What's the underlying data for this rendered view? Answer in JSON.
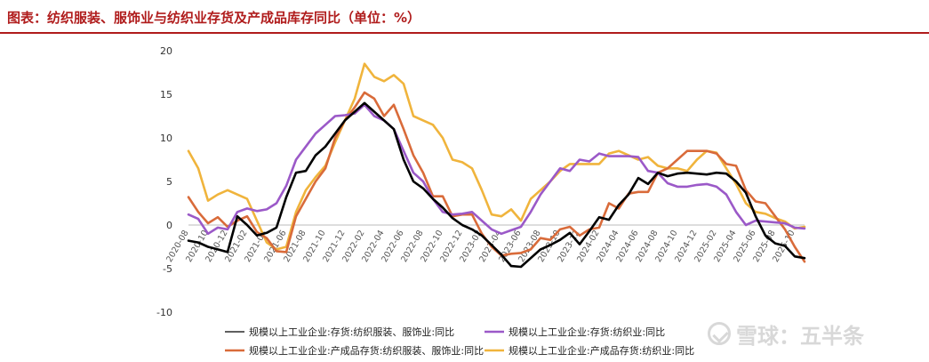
{
  "header": {
    "title": "图表：纺织服装、服饰业与纺织业存货及产成品库存同比（单位：%）"
  },
  "watermark": {
    "icon": "snowball-logo-icon",
    "text": "雪球：五半条"
  },
  "chart_data": {
    "type": "line",
    "title": "图表：纺织服装、服饰业与纺织业存货及产成品库存同比（单位：%）",
    "ylim": [
      -10,
      20
    ],
    "yticks": [
      -10,
      -5,
      0,
      5,
      10,
      15,
      20
    ],
    "grid": false,
    "legend_position": "bottom",
    "x": [
      "2020-08",
      "2020-09",
      "2020-10",
      "2020-11",
      "2020-12",
      "2021-01",
      "2021-02",
      "2021-03",
      "2021-04",
      "2021-05",
      "2021-06",
      "2021-07",
      "2021-08",
      "2021-09",
      "2021-10",
      "2021-11",
      "2021-12",
      "2022-01",
      "2022-02",
      "2022-03",
      "2022-04",
      "2022-05",
      "2022-06",
      "2022-07",
      "2022-08",
      "2022-09",
      "2022-10",
      "2022-11",
      "2022-12",
      "2023-01",
      "2023-02",
      "2023-03",
      "2023-04",
      "2023-05",
      "2023-06",
      "2023-07",
      "2023-08",
      "2023-09",
      "2023-10",
      "2023-11",
      "2023-12",
      "2024-01",
      "2024-02",
      "2024-03",
      "2024-04",
      "2024-05",
      "2024-06",
      "2024-07",
      "2024-08",
      "2024-09",
      "2024-10",
      "2024-11",
      "2024-12",
      "2025-01",
      "2025-02",
      "2025-03",
      "2025-04",
      "2025-05",
      "2025-06",
      "2025-07",
      "2025-08",
      "2025-09",
      "2025-10",
      "2025-11"
    ],
    "x_tick_labels": [
      "2020-08",
      "2020-10",
      "2020-12",
      "2021-02",
      "2021-04",
      "2021-06",
      "2021-08",
      "2021-10",
      "2021-12",
      "2022-02",
      "2022-04",
      "2022-06",
      "2022-08",
      "2022-10",
      "2022-12",
      "2023-02",
      "2023-04",
      "2023-06",
      "2023-08",
      "2023-10",
      "2023-12",
      "2024-02",
      "2024-04",
      "2024-06",
      "2024-08",
      "2024-10",
      "2024-12",
      "2025-02",
      "2025-04",
      "2025-06",
      "2025-08",
      "2025-10"
    ],
    "series": [
      {
        "name": "规模以上工业企业:存货:纺织服装、服饰业:同比",
        "color": "#000000",
        "values": [
          -1.8,
          -2.0,
          -2.5,
          -2.8,
          -3.1,
          1.0,
          0.0,
          -1.2,
          -0.9,
          -0.3,
          3.2,
          6.0,
          6.2,
          8.0,
          9.0,
          10.5,
          12.0,
          13.0,
          14.0,
          13.0,
          12.0,
          11.0,
          7.5,
          5.0,
          4.2,
          3.0,
          2.0,
          0.8,
          0.0,
          -0.5,
          -1.2,
          -2.3,
          -3.4,
          -4.7,
          -4.8,
          -3.8,
          -2.8,
          -2.3,
          -1.7,
          -0.9,
          -2.2,
          -0.7,
          0.9,
          0.6,
          2.3,
          3.5,
          5.4,
          4.7,
          6.0,
          5.6,
          5.9,
          6.0,
          5.9,
          5.8,
          6.0,
          5.9,
          5.0,
          3.7,
          1.0,
          -1.2,
          -2.1,
          -2.4,
          -3.6,
          -3.8
        ]
      },
      {
        "name": "规模以上工业企业:存货:纺织业:同比",
        "color": "#9b59c8",
        "values": [
          1.2,
          0.7,
          -1.0,
          -0.3,
          -0.5,
          1.5,
          1.9,
          1.6,
          1.8,
          2.5,
          4.5,
          7.5,
          9.0,
          10.5,
          11.5,
          12.5,
          12.6,
          12.8,
          13.8,
          12.5,
          12.0,
          11.0,
          8.5,
          6.0,
          5.0,
          3.0,
          1.5,
          1.2,
          1.3,
          1.5,
          0.5,
          -0.5,
          -1.0,
          -0.6,
          -0.2,
          1.5,
          3.5,
          5.0,
          6.5,
          6.2,
          7.5,
          7.3,
          8.2,
          7.9,
          7.9,
          7.9,
          7.8,
          6.2,
          6.0,
          4.8,
          4.4,
          4.4,
          4.6,
          4.7,
          4.4,
          3.5,
          1.5,
          0.0,
          0.5,
          0.4,
          0.3,
          0.2,
          -0.3,
          -0.4
        ]
      },
      {
        "name": "规模以上工业企业:产成品存货:纺织服装、服饰业:同比",
        "color": "#d96b3a",
        "values": [
          3.2,
          1.5,
          0.2,
          0.9,
          -0.2,
          0.5,
          1.0,
          -0.8,
          -1.5,
          -3.0,
          -3.1,
          1.0,
          3.0,
          5.0,
          6.5,
          10.0,
          12.0,
          13.5,
          15.2,
          14.5,
          12.5,
          13.8,
          11.0,
          8.0,
          6.0,
          3.3,
          3.3,
          1.0,
          1.2,
          1.2,
          -1.0,
          -2.5,
          -3.5,
          -3.3,
          -3.2,
          -2.8,
          -1.5,
          -1.7,
          -0.5,
          -0.2,
          -1.2,
          -0.5,
          -0.3,
          2.5,
          1.9,
          3.6,
          3.8,
          3.8,
          6.0,
          6.5,
          7.5,
          8.5,
          8.5,
          8.5,
          8.2,
          7.0,
          6.8,
          4.0,
          2.7,
          2.5,
          1.0,
          -0.5,
          -2.5,
          -4.2
        ]
      },
      {
        "name": "规模以上工业企业:产成品存货:纺织业:同比",
        "color": "#f0b43c",
        "values": [
          8.5,
          6.5,
          2.8,
          3.5,
          4.0,
          3.5,
          3.0,
          0.5,
          -2.0,
          -2.8,
          -2.5,
          1.5,
          4.0,
          5.5,
          6.8,
          9.5,
          12.0,
          14.5,
          18.5,
          17.0,
          16.5,
          17.2,
          16.2,
          12.5,
          12.0,
          11.5,
          10.0,
          7.5,
          7.2,
          6.5,
          4.0,
          1.2,
          1.0,
          1.8,
          0.5,
          3.0,
          4.0,
          5.0,
          6.2,
          7.0,
          7.0,
          7.0,
          7.0,
          8.2,
          8.5,
          8.0,
          7.5,
          7.8,
          6.8,
          6.5,
          6.5,
          6.2,
          7.5,
          8.5,
          8.3,
          6.5,
          4.7,
          2.5,
          1.5,
          1.3,
          0.8,
          0.4,
          -0.4,
          -0.2
        ]
      }
    ]
  }
}
